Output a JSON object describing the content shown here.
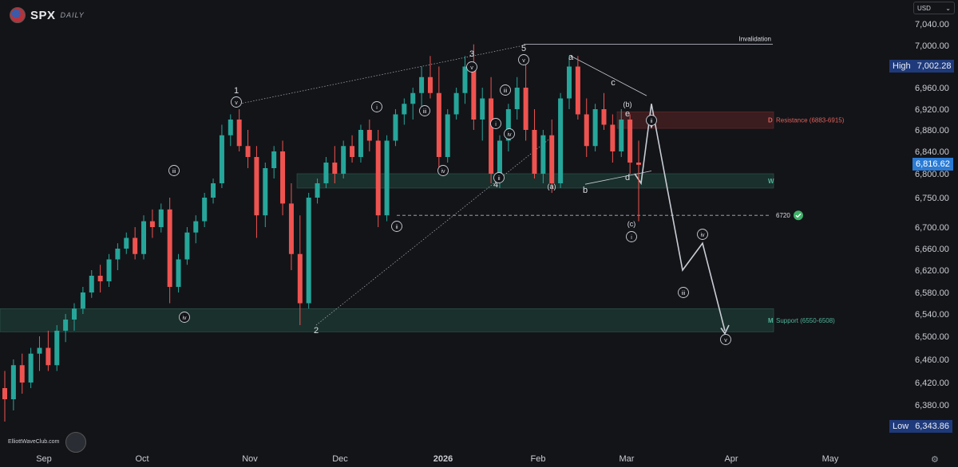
{
  "header": {
    "symbol": "SPX",
    "timeframe": "DAILY"
  },
  "currency_button": {
    "label": "USD",
    "chevron_icon": "chevron-down-icon"
  },
  "high_tag": {
    "label": "High",
    "value": "7,002.28",
    "color": "#1f3a7a"
  },
  "low_tag": {
    "label": "Low",
    "value": "6,343.86",
    "color": "#1f3a7a"
  },
  "last_price_tag": {
    "value": "6,816.62",
    "color": "#2a7bd5"
  },
  "watermark": {
    "text": "ElliottWaveClub.com"
  },
  "colors": {
    "up": "#26a69a",
    "down": "#ef5350",
    "zone": "#1d3a33",
    "resistance": "#4a1f22",
    "path": "#c8ccd4"
  },
  "chart_data": {
    "type": "candlestick",
    "y_axis_ticks": [
      "7,040.00",
      "7,000.00",
      "6,960.00",
      "6,920.00",
      "6,880.00",
      "6,840.00",
      "6,800.00",
      "6,750.00",
      "6,700.00",
      "6,660.00",
      "6,620.00",
      "6,580.00",
      "6,540.00",
      "6,500.00",
      "6,460.00",
      "6,420.00",
      "6,380.00"
    ],
    "x_axis_ticks": [
      "Sep",
      "Oct",
      "Nov",
      "Dec",
      "2026",
      "Feb",
      "Mar",
      "Apr",
      "May"
    ],
    "ohlc": [
      [
        6410,
        6440,
        6350,
        6390
      ],
      [
        6390,
        6460,
        6370,
        6450
      ],
      [
        6450,
        6470,
        6400,
        6420
      ],
      [
        6420,
        6480,
        6410,
        6470
      ],
      [
        6470,
        6500,
        6440,
        6480
      ],
      [
        6480,
        6510,
        6440,
        6450
      ],
      [
        6450,
        6520,
        6440,
        6510
      ],
      [
        6510,
        6540,
        6490,
        6530
      ],
      [
        6530,
        6560,
        6510,
        6550
      ],
      [
        6550,
        6590,
        6540,
        6580
      ],
      [
        6580,
        6620,
        6570,
        6610
      ],
      [
        6610,
        6630,
        6580,
        6600
      ],
      [
        6600,
        6650,
        6590,
        6640
      ],
      [
        6640,
        6670,
        6620,
        6660
      ],
      [
        6660,
        6690,
        6650,
        6680
      ],
      [
        6680,
        6700,
        6640,
        6650
      ],
      [
        6650,
        6720,
        6640,
        6710
      ],
      [
        6710,
        6730,
        6680,
        6700
      ],
      [
        6700,
        6740,
        6690,
        6730
      ],
      [
        6730,
        6750,
        6560,
        6590
      ],
      [
        6590,
        6650,
        6580,
        6640
      ],
      [
        6640,
        6700,
        6630,
        6690
      ],
      [
        6690,
        6720,
        6670,
        6710
      ],
      [
        6710,
        6760,
        6700,
        6750
      ],
      [
        6750,
        6790,
        6740,
        6780
      ],
      [
        6780,
        6890,
        6770,
        6870
      ],
      [
        6870,
        6910,
        6850,
        6900
      ],
      [
        6900,
        6920,
        6840,
        6850
      ],
      [
        6850,
        6880,
        6810,
        6830
      ],
      [
        6830,
        6850,
        6680,
        6720
      ],
      [
        6720,
        6820,
        6700,
        6810
      ],
      [
        6810,
        6850,
        6790,
        6840
      ],
      [
        6840,
        6860,
        6720,
        6740
      ],
      [
        6740,
        6780,
        6620,
        6650
      ],
      [
        6650,
        6720,
        6520,
        6560
      ],
      [
        6560,
        6760,
        6550,
        6750
      ],
      [
        6750,
        6790,
        6740,
        6780
      ],
      [
        6780,
        6830,
        6770,
        6820
      ],
      [
        6820,
        6850,
        6780,
        6800
      ],
      [
        6800,
        6860,
        6790,
        6850
      ],
      [
        6850,
        6870,
        6820,
        6830
      ],
      [
        6830,
        6890,
        6820,
        6880
      ],
      [
        6880,
        6900,
        6840,
        6860
      ],
      [
        6860,
        6880,
        6700,
        6720
      ],
      [
        6720,
        6870,
        6710,
        6860
      ],
      [
        6860,
        6920,
        6850,
        6910
      ],
      [
        6910,
        6940,
        6890,
        6930
      ],
      [
        6930,
        6960,
        6900,
        6950
      ],
      [
        6950,
        6980,
        6920,
        6970
      ],
      [
        6970,
        6990,
        6940,
        6950
      ],
      [
        6950,
        6980,
        6800,
        6830
      ],
      [
        6830,
        6920,
        6820,
        6910
      ],
      [
        6910,
        6960,
        6900,
        6950
      ],
      [
        6950,
        6990,
        6930,
        6980
      ],
      [
        6980,
        7002,
        6880,
        6900
      ],
      [
        6900,
        6960,
        6860,
        6940
      ],
      [
        6940,
        6970,
        6780,
        6800
      ],
      [
        6800,
        6870,
        6770,
        6860
      ],
      [
        6860,
        6930,
        6840,
        6920
      ],
      [
        6920,
        6970,
        6900,
        6960
      ],
      [
        6960,
        6990,
        6860,
        6880
      ],
      [
        6880,
        6920,
        6790,
        6800
      ],
      [
        6800,
        6880,
        6780,
        6870
      ],
      [
        6870,
        6900,
        6760,
        6780
      ],
      [
        6780,
        6950,
        6770,
        6940
      ],
      [
        6940,
        6990,
        6920,
        6980
      ],
      [
        6980,
        6990,
        6900,
        6910
      ],
      [
        6910,
        6940,
        6830,
        6850
      ],
      [
        6850,
        6930,
        6840,
        6920
      ],
      [
        6920,
        6950,
        6880,
        6890
      ],
      [
        6890,
        6910,
        6820,
        6840
      ],
      [
        6840,
        6920,
        6830,
        6900
      ],
      [
        6900,
        6910,
        6800,
        6820
      ],
      [
        6820,
        6860,
        6710,
        6816
      ]
    ],
    "zones": [
      {
        "name": "Resistance",
        "label": "Resistance (6883-6915)",
        "marker": "D",
        "low": 6883,
        "high": 6915,
        "kind": "resistance"
      },
      {
        "name": "W",
        "label": "",
        "marker": "W",
        "low": 6770,
        "high": 6800,
        "kind": "support"
      },
      {
        "name": "Support",
        "label": "Support (6550-6508)",
        "marker": "M",
        "low": 6508,
        "high": 6550,
        "kind": "support"
      }
    ],
    "levels": [
      {
        "label": "Invalidation",
        "value": 7002
      },
      {
        "label": "6720",
        "value": 6720,
        "check_icon": "check-circle-icon"
      }
    ],
    "wave_labels": [
      "1",
      "2",
      "3",
      "4",
      "5",
      "a",
      "b",
      "c",
      "d",
      "e",
      "(a)",
      "(b)",
      "(c)",
      "i",
      "ii",
      "iii",
      "iv",
      "v"
    ],
    "projection_path": [
      [
        6810,
        6800
      ],
      [
        6800,
        6780
      ],
      [
        6880,
        6930
      ],
      [
        6600,
        6620
      ],
      [
        6670,
        6670
      ],
      [
        6500,
        6510
      ]
    ]
  }
}
